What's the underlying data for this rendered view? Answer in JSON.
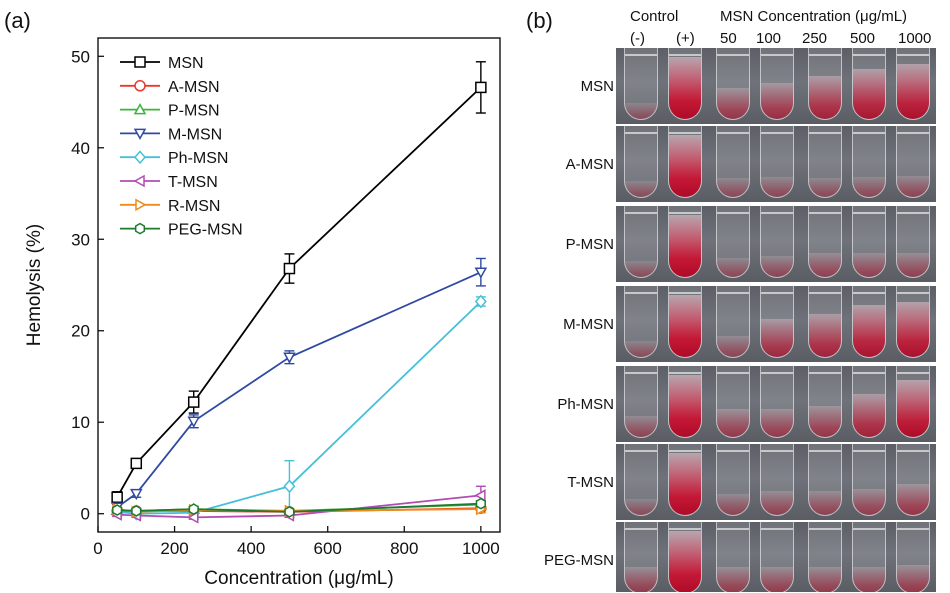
{
  "panel_a_label": "(a)",
  "panel_b_label": "(b)",
  "chart_data": {
    "type": "line",
    "xlabel": "Concentration (μg/mL)",
    "ylabel": "Hemolysis (%)",
    "xlim": [
      0,
      1050
    ],
    "ylim": [
      -2,
      52
    ],
    "xticks": [
      0,
      200,
      400,
      600,
      800,
      1000
    ],
    "yticks": [
      0,
      10,
      20,
      30,
      40,
      50
    ],
    "legend_position": "top-left",
    "x": [
      50,
      100,
      250,
      500,
      1000
    ],
    "series": [
      {
        "name": "MSN",
        "color": "#000000",
        "marker": "square",
        "values": [
          1.8,
          5.5,
          12.2,
          26.8,
          46.6
        ],
        "errors": [
          0.6,
          0.5,
          1.2,
          1.6,
          2.8
        ]
      },
      {
        "name": "A-MSN",
        "color": "#e8392b",
        "marker": "circle",
        "values": [
          0.3,
          0.3,
          0.3,
          0.2,
          0.6
        ],
        "errors": [
          0.2,
          0.2,
          0.2,
          0.2,
          0.2
        ]
      },
      {
        "name": "P-MSN",
        "color": "#3cb33c",
        "marker": "triangle-up",
        "values": [
          0.4,
          0.3,
          0.5,
          0.3,
          1.0
        ],
        "errors": [
          0.2,
          0.2,
          0.3,
          0.2,
          0.3
        ]
      },
      {
        "name": "M-MSN",
        "color": "#2f4aa3",
        "marker": "triangle-down",
        "values": [
          0.7,
          2.2,
          10.1,
          17.1,
          26.4
        ],
        "errors": [
          0.3,
          0.4,
          0.7,
          0.7,
          1.5
        ]
      },
      {
        "name": "Ph-MSN",
        "color": "#46c0d8",
        "marker": "diamond",
        "values": [
          0.2,
          0.0,
          0.1,
          3.0,
          23.2
        ],
        "errors": [
          0.2,
          0.2,
          0.2,
          2.8,
          0.5
        ]
      },
      {
        "name": "T-MSN",
        "color": "#b24bb2",
        "marker": "triangle-left",
        "values": [
          -0.1,
          -0.2,
          -0.4,
          -0.2,
          2.0
        ],
        "errors": [
          0.2,
          0.2,
          0.2,
          0.2,
          1.0
        ]
      },
      {
        "name": "R-MSN",
        "color": "#f08a1c",
        "marker": "triangle-right",
        "values": [
          0.5,
          0.2,
          0.4,
          0.3,
          0.5
        ],
        "errors": [
          0.2,
          0.2,
          0.2,
          0.2,
          0.4
        ]
      },
      {
        "name": "PEG-MSN",
        "color": "#1e7a2e",
        "marker": "hexagon",
        "values": [
          0.4,
          0.3,
          0.5,
          0.2,
          1.1
        ],
        "errors": [
          0.2,
          0.2,
          0.2,
          0.2,
          0.3
        ]
      }
    ]
  },
  "photo_panel": {
    "control_label": "Control",
    "neg_label": "(-)",
    "pos_label": "(+)",
    "conc_header": "MSN Concentration (μg/mL)",
    "concentrations": [
      "50",
      "100",
      "250",
      "500",
      "1000"
    ],
    "rows": [
      {
        "label": "MSN",
        "red_levels": [
          0.05,
          1.0,
          0.35,
          0.45,
          0.6,
          0.75,
          0.85
        ]
      },
      {
        "label": "A-MSN",
        "red_levels": [
          0.05,
          1.0,
          0.1,
          0.12,
          0.1,
          0.12,
          0.15
        ]
      },
      {
        "label": "P-MSN",
        "red_levels": [
          0.05,
          1.0,
          0.1,
          0.15,
          0.2,
          0.2,
          0.2
        ]
      },
      {
        "label": "M-MSN",
        "red_levels": [
          0.05,
          1.0,
          0.15,
          0.5,
          0.6,
          0.8,
          0.85
        ]
      },
      {
        "label": "Ph-MSN",
        "red_levels": [
          0.15,
          1.0,
          0.3,
          0.3,
          0.35,
          0.6,
          0.9
        ]
      },
      {
        "label": "T-MSN",
        "red_levels": [
          0.05,
          1.0,
          0.15,
          0.2,
          0.2,
          0.25,
          0.35
        ]
      },
      {
        "label": "PEG-MSN",
        "red_levels": [
          0.25,
          1.0,
          0.25,
          0.25,
          0.25,
          0.25,
          0.3
        ]
      }
    ]
  }
}
